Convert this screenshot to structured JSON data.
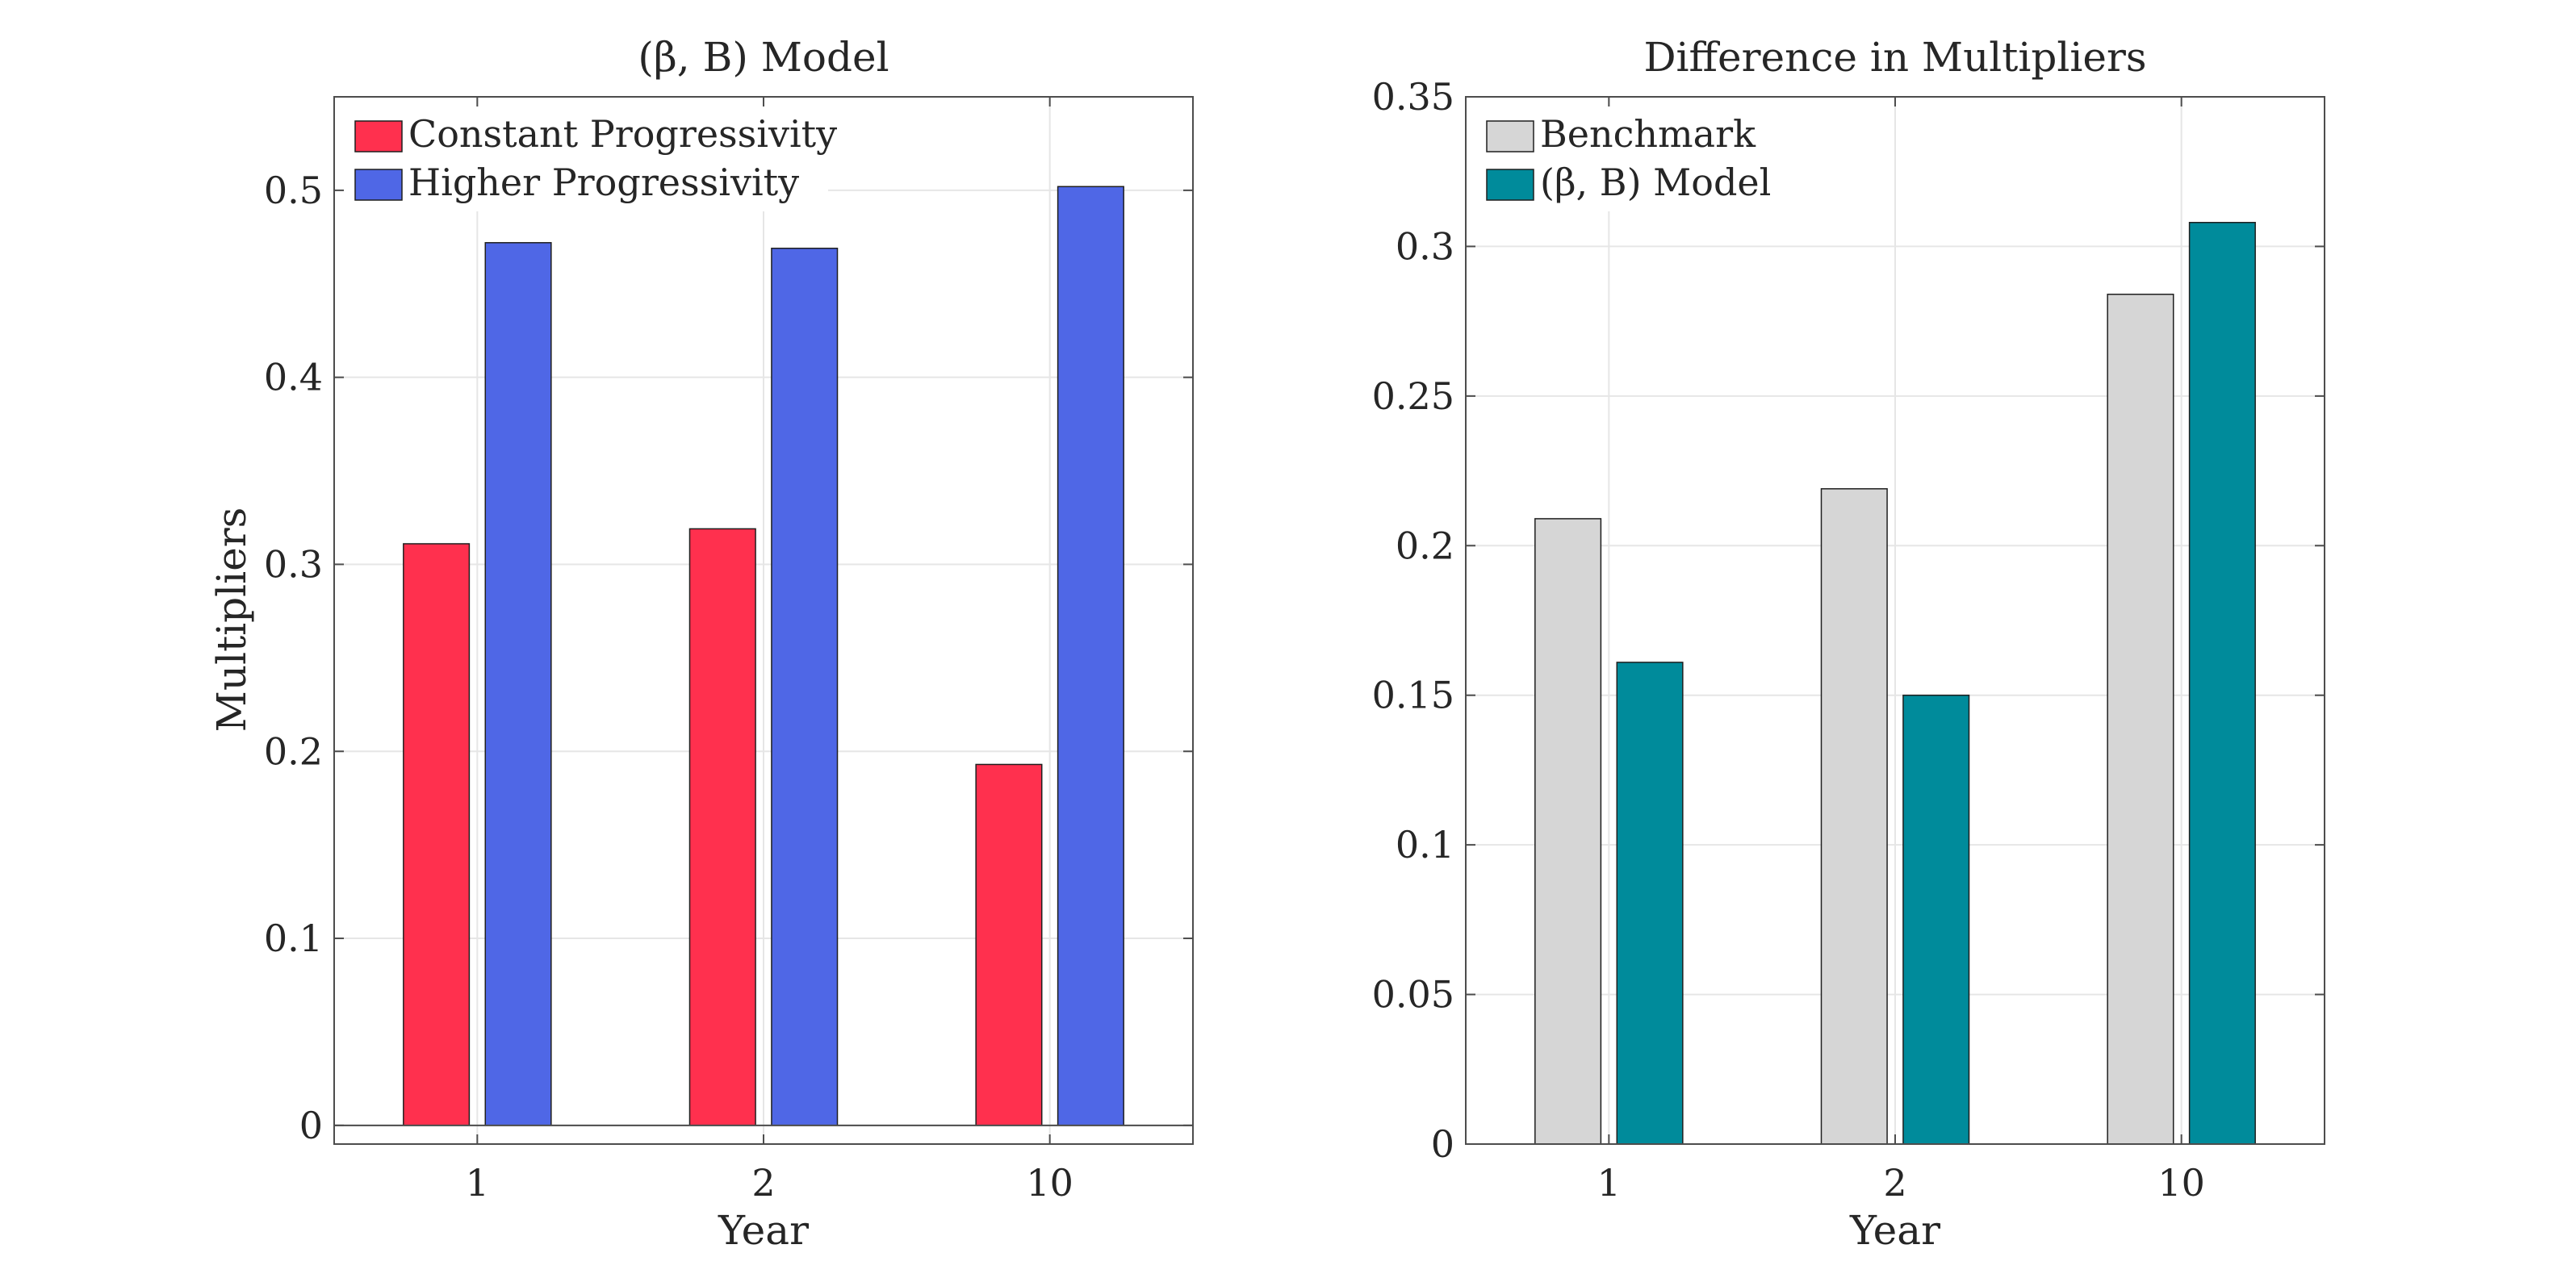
{
  "chart_data": [
    {
      "id": "left",
      "type": "bar",
      "title": "(β, B) Model",
      "xlabel": "Year",
      "ylabel": "Multipliers",
      "categories": [
        "1",
        "2",
        "10"
      ],
      "ylim": [
        -0.01,
        0.55
      ],
      "yticks": [
        0,
        0.1,
        0.2,
        0.3,
        0.4,
        0.5
      ],
      "ytick_labels": [
        "0",
        "0.1",
        "0.2",
        "0.3",
        "0.4",
        "0.5"
      ],
      "grid": true,
      "legend_position": "top-left",
      "series": [
        {
          "name": "Constant Progressivity",
          "color": "#ff304e",
          "values": [
            0.311,
            0.319,
            0.193
          ]
        },
        {
          "name": "Higher Progressivity",
          "color": "#4f67e6",
          "values": [
            0.472,
            0.469,
            0.502
          ]
        }
      ]
    },
    {
      "id": "right",
      "type": "bar",
      "title": "Difference in Multipliers",
      "xlabel": "Year",
      "ylabel": "",
      "categories": [
        "1",
        "2",
        "10"
      ],
      "ylim": [
        0,
        0.35
      ],
      "yticks": [
        0,
        0.05,
        0.1,
        0.15,
        0.2,
        0.25,
        0.3,
        0.35
      ],
      "ytick_labels": [
        "0",
        "0.05",
        "0.1",
        "0.15",
        "0.2",
        "0.25",
        "0.3",
        "0.35"
      ],
      "grid": true,
      "legend_position": "top-left",
      "series": [
        {
          "name": "Benchmark",
          "color": "#d6d6d6",
          "values": [
            0.209,
            0.219,
            0.284
          ]
        },
        {
          "name": "(β, B) Model",
          "color": "#008b9b",
          "values": [
            0.161,
            0.15,
            0.308
          ]
        }
      ]
    }
  ]
}
